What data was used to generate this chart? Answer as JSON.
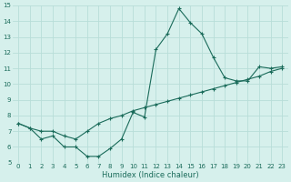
{
  "xlabel": "Humidex (Indice chaleur)",
  "ylabel": "",
  "xlim": [
    -0.5,
    23.5
  ],
  "ylim": [
    5,
    15
  ],
  "yticks": [
    5,
    6,
    7,
    8,
    9,
    10,
    11,
    12,
    13,
    14,
    15
  ],
  "xticks": [
    0,
    1,
    2,
    3,
    4,
    5,
    6,
    7,
    8,
    9,
    10,
    11,
    12,
    13,
    14,
    15,
    16,
    17,
    18,
    19,
    20,
    21,
    22,
    23
  ],
  "bg_color": "#d6f0ec",
  "grid_color": "#b8ddd8",
  "line_color": "#1a6b5a",
  "line1_x": [
    0,
    1,
    2,
    3,
    4,
    5,
    6,
    7,
    8,
    9,
    10,
    11,
    12,
    13,
    14,
    15,
    16,
    17,
    18,
    19,
    20,
    21,
    22,
    23
  ],
  "line1_y": [
    7.5,
    7.2,
    6.5,
    6.7,
    6.0,
    6.0,
    5.4,
    5.4,
    5.9,
    6.5,
    8.2,
    7.9,
    12.2,
    13.2,
    14.8,
    13.9,
    13.2,
    11.7,
    10.4,
    10.2,
    10.2,
    11.1,
    11.0,
    11.1
  ],
  "line2_x": [
    0,
    1,
    2,
    3,
    4,
    5,
    6,
    7,
    8,
    9,
    10,
    11,
    12,
    13,
    14,
    15,
    16,
    17,
    18,
    19,
    20,
    21,
    22,
    23
  ],
  "line2_y": [
    7.5,
    7.2,
    7.0,
    7.0,
    6.7,
    6.5,
    7.0,
    7.5,
    7.8,
    8.0,
    8.3,
    8.5,
    8.7,
    8.9,
    9.1,
    9.3,
    9.5,
    9.7,
    9.9,
    10.1,
    10.3,
    10.5,
    10.8,
    11.0
  ],
  "xlabel_fontsize": 6,
  "tick_fontsize": 5,
  "linewidth": 0.8,
  "markersize": 2.5,
  "markeredgewidth": 0.8
}
